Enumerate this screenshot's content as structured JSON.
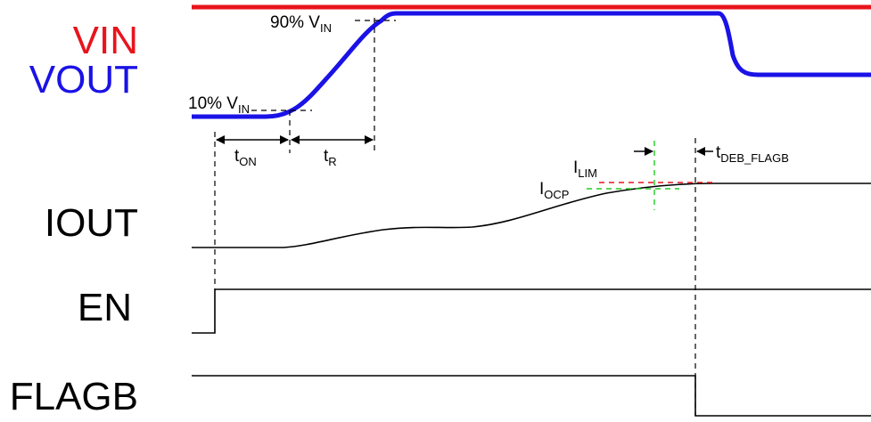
{
  "signals": {
    "vin": {
      "label": "VIN",
      "color": "#e8141c"
    },
    "vout": {
      "label": "VOUT",
      "color": "#1a12e6"
    },
    "iout": {
      "label": "IOUT"
    },
    "en": {
      "label": "EN"
    },
    "flagb": {
      "label": "FLAGB"
    }
  },
  "annotations": {
    "ninety": {
      "main": "90% V",
      "sub": "IN"
    },
    "ten": {
      "main": "10% V",
      "sub": "IN"
    },
    "ton": {
      "main": "t",
      "sub": "ON"
    },
    "tr": {
      "main": "t",
      "sub": "R"
    },
    "tdeb": {
      "main": "t",
      "sub": "DEB_FLAGB"
    },
    "ilim": {
      "main": "I",
      "sub": "LIM",
      "color": "#e8141c"
    },
    "iocp": {
      "main": "I",
      "sub": "OCP",
      "color": "#22cc22"
    }
  }
}
